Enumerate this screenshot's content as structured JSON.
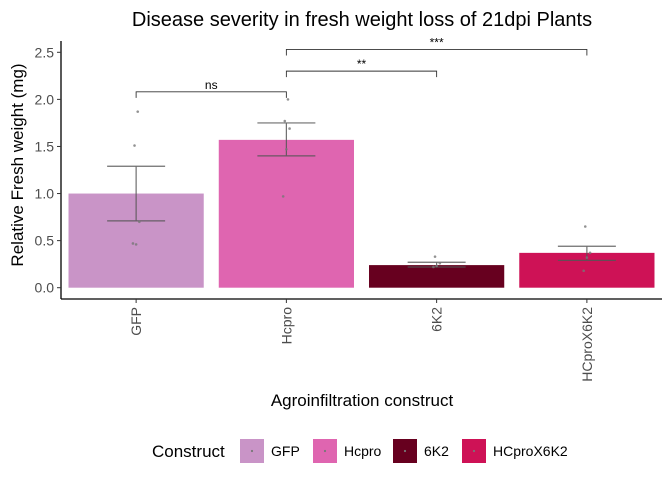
{
  "chart_data": {
    "type": "bar",
    "title": "Disease severity in fresh weight loss of 21dpi Plants",
    "xlabel": "Agroinfiltration construct",
    "ylabel": "Relative Fresh weight (mg)",
    "categories": [
      "GFP",
      "Hcpro",
      "6K2",
      "HCproX6K2"
    ],
    "values": [
      1.0,
      1.57,
      0.24,
      0.37
    ],
    "error_low": [
      0.71,
      1.4,
      0.22,
      0.29
    ],
    "error_high": [
      1.29,
      1.75,
      0.27,
      0.44
    ],
    "colors": [
      "#c994c7",
      "#df65b0",
      "#67001f",
      "#ce1256"
    ],
    "points": [
      [
        0.47,
        0.46,
        0.7,
        1.51,
        1.87
      ],
      [
        0.97,
        1.47,
        1.69,
        1.77,
        2.0
      ],
      [
        0.22,
        0.23,
        0.26,
        0.33
      ],
      [
        0.18,
        0.32,
        0.37,
        0.65
      ]
    ],
    "ylim": [
      -0.12,
      2.62
    ],
    "yticks": [
      "0.0",
      "0.5",
      "1.0",
      "1.5",
      "2.0",
      "2.5"
    ],
    "grid": false,
    "significance": [
      {
        "from": "GFP",
        "to": "Hcpro",
        "y": 2.08,
        "label": "ns"
      },
      {
        "from": "Hcpro",
        "to": "6K2",
        "y": 2.3,
        "label": "**"
      },
      {
        "from": "Hcpro",
        "to": "HCproX6K2",
        "y": 2.53,
        "label": "***"
      }
    ],
    "legend": {
      "position": "bottom",
      "title": "Construct",
      "entries": [
        "GFP",
        "Hcpro",
        "6K2",
        "HCproX6K2"
      ]
    }
  }
}
